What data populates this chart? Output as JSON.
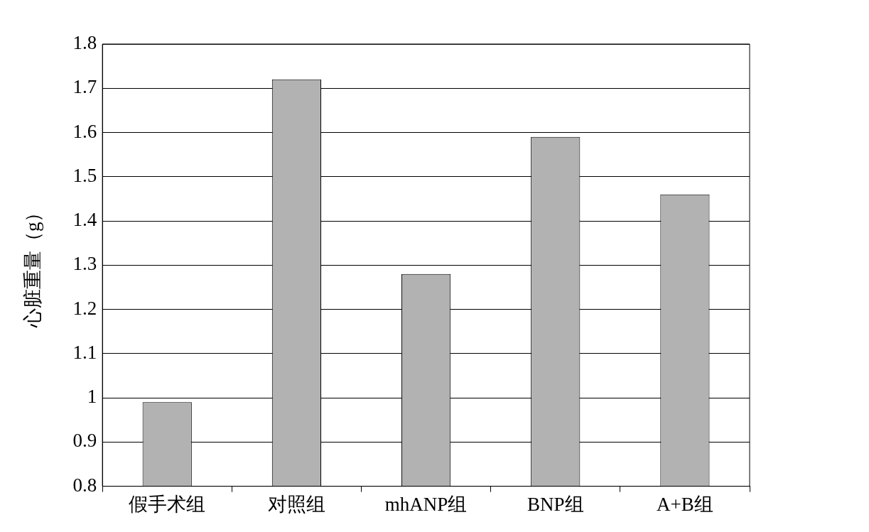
{
  "chart_data": {
    "type": "bar",
    "ylabel": "心脏重量（g）",
    "categories": [
      "假手术组",
      "对照组",
      "mhANP组",
      "BNP组",
      "A+B组"
    ],
    "values": [
      0.99,
      1.72,
      1.28,
      1.59,
      1.46
    ],
    "color": "#b2b2b2",
    "ylim": [
      0.8,
      1.8
    ],
    "yticks": [
      0.8,
      0.9,
      1,
      1.1,
      1.2,
      1.3,
      1.4,
      1.5,
      1.6,
      1.7,
      1.8
    ],
    "grid": "y",
    "legend": false
  }
}
